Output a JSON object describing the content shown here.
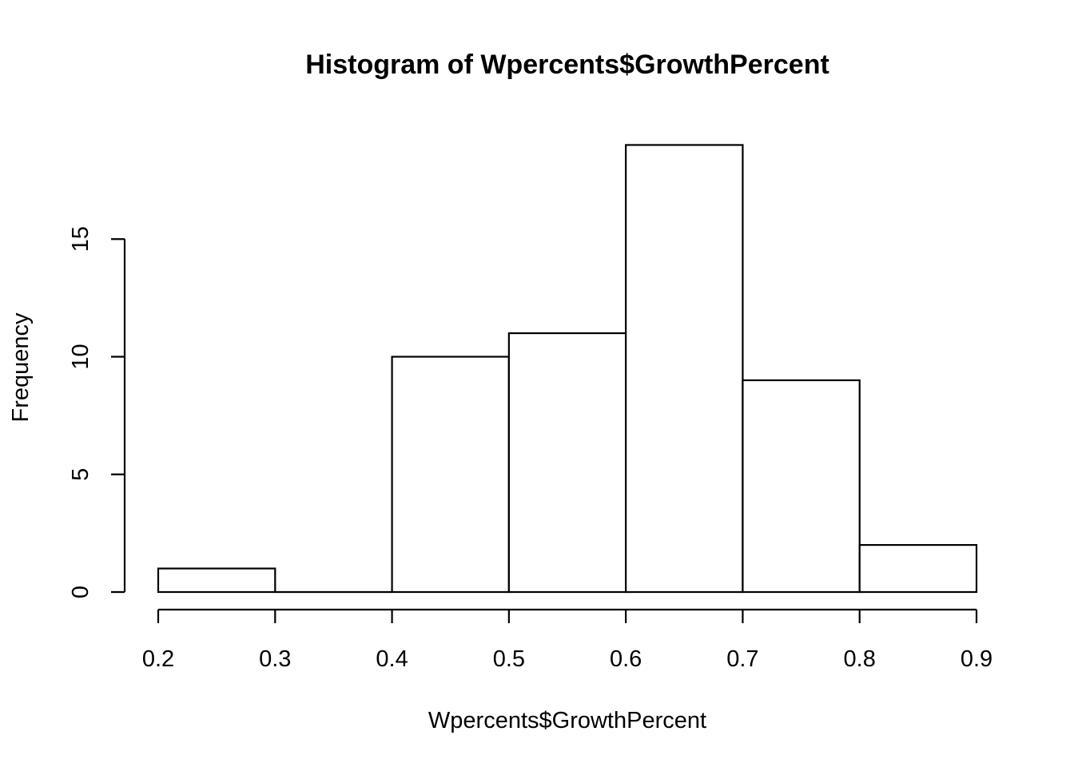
{
  "chart_data": {
    "type": "bar",
    "subtype": "histogram",
    "title": "Histogram of Wpercents$GrowthPercent",
    "xlabel": "Wpercents$GrowthPercent",
    "ylabel": "Frequency",
    "bins": [
      {
        "from": 0.2,
        "to": 0.3,
        "count": 1
      },
      {
        "from": 0.3,
        "to": 0.4,
        "count": 0
      },
      {
        "from": 0.4,
        "to": 0.5,
        "count": 10
      },
      {
        "from": 0.5,
        "to": 0.6,
        "count": 11
      },
      {
        "from": 0.6,
        "to": 0.7,
        "count": 19
      },
      {
        "from": 0.7,
        "to": 0.8,
        "count": 9
      },
      {
        "from": 0.8,
        "to": 0.9,
        "count": 2
      }
    ],
    "xlim": [
      0.2,
      0.9
    ],
    "ylim": [
      0,
      20
    ],
    "x_ticks": [
      "0.2",
      "0.3",
      "0.4",
      "0.5",
      "0.6",
      "0.7",
      "0.8",
      "0.9"
    ],
    "y_ticks": [
      "0",
      "5",
      "10",
      "15"
    ],
    "grid": false,
    "legend": "none",
    "bar_fill": "#ffffff",
    "bar_stroke": "#000000"
  }
}
